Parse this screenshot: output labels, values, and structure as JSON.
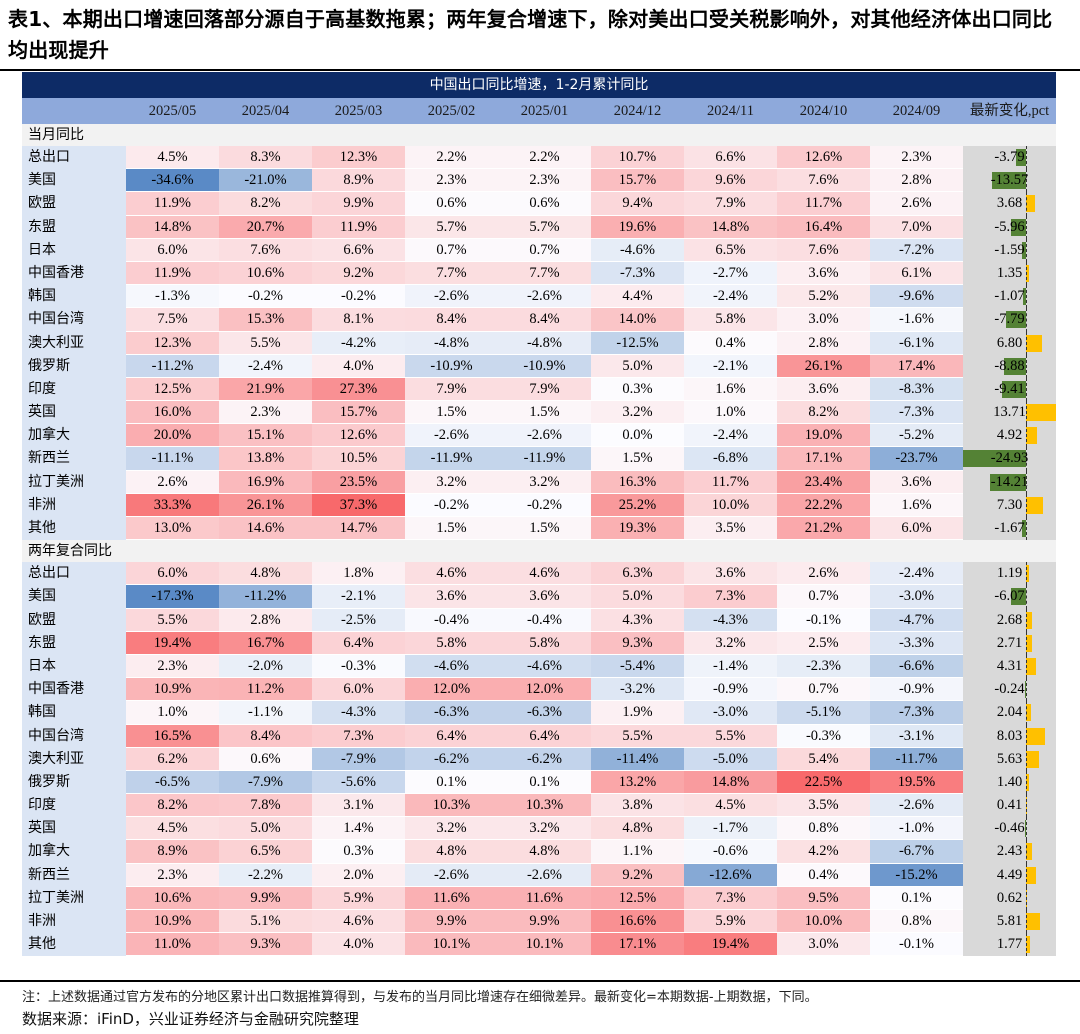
{
  "title": "表1、本期出口增速回落部分源自于高基数拖累；两年复合增速下，除对美出口受关税影响外，对其他经济体出口同比均出现提升",
  "table": {
    "banner": "中国出口同比增速，1-2月累计同比",
    "columns": [
      "2025/05",
      "2025/04",
      "2025/03",
      "2025/02",
      "2025/01",
      "2024/12",
      "2024/11",
      "2024/10",
      "2024/09",
      "最新变化,pct"
    ],
    "sections": [
      {
        "name": "当月同比",
        "rows": [
          {
            "label": "总出口",
            "values": [
              4.5,
              8.3,
              12.3,
              2.2,
              2.2,
              10.7,
              6.6,
              12.6,
              2.3
            ],
            "change": -3.79
          },
          {
            "label": "美国",
            "values": [
              -34.6,
              -21.0,
              8.9,
              2.3,
              2.3,
              15.7,
              9.6,
              7.6,
              2.8
            ],
            "change": -13.57
          },
          {
            "label": "欧盟",
            "values": [
              11.9,
              8.2,
              9.9,
              0.6,
              0.6,
              9.4,
              7.9,
              11.7,
              2.6
            ],
            "change": 3.68
          },
          {
            "label": "东盟",
            "values": [
              14.8,
              20.7,
              11.9,
              5.7,
              5.7,
              19.6,
              14.8,
              16.4,
              7.0
            ],
            "change": -5.96
          },
          {
            "label": "日本",
            "values": [
              6.0,
              7.6,
              6.6,
              0.7,
              0.7,
              -4.6,
              6.5,
              7.6,
              -7.2
            ],
            "change": -1.59
          },
          {
            "label": "中国香港",
            "values": [
              11.9,
              10.6,
              9.2,
              7.7,
              7.7,
              -7.3,
              -2.7,
              3.6,
              6.1
            ],
            "change": 1.35
          },
          {
            "label": "韩国",
            "values": [
              -1.3,
              -0.2,
              -0.2,
              -2.6,
              -2.6,
              4.4,
              -2.4,
              5.2,
              -9.6
            ],
            "change": -1.07
          },
          {
            "label": "中国台湾",
            "values": [
              7.5,
              15.3,
              8.1,
              8.4,
              8.4,
              14.0,
              5.8,
              3.0,
              -1.6
            ],
            "change": -7.79
          },
          {
            "label": "澳大利亚",
            "values": [
              12.3,
              5.5,
              -4.2,
              -4.8,
              -4.8,
              -12.5,
              0.4,
              2.8,
              -6.1
            ],
            "change": 6.8
          },
          {
            "label": "俄罗斯",
            "values": [
              -11.2,
              -2.4,
              4.0,
              -10.9,
              -10.9,
              5.0,
              -2.1,
              26.1,
              17.4
            ],
            "change": -8.88
          },
          {
            "label": "印度",
            "values": [
              12.5,
              21.9,
              27.3,
              7.9,
              7.9,
              0.3,
              1.6,
              3.6,
              -8.3
            ],
            "change": -9.41
          },
          {
            "label": "英国",
            "values": [
              16.0,
              2.3,
              15.7,
              1.5,
              1.5,
              3.2,
              1.0,
              8.2,
              -7.3
            ],
            "change": 13.71
          },
          {
            "label": "加拿大",
            "values": [
              20.0,
              15.1,
              12.6,
              -2.6,
              -2.6,
              0.0,
              -2.4,
              19.0,
              -5.2
            ],
            "change": 4.92
          },
          {
            "label": "新西兰",
            "values": [
              -11.1,
              13.8,
              10.5,
              -11.9,
              -11.9,
              1.5,
              -6.8,
              17.1,
              -23.7
            ],
            "change": -24.93
          },
          {
            "label": "拉丁美洲",
            "values": [
              2.6,
              16.9,
              23.5,
              3.2,
              3.2,
              16.3,
              11.7,
              23.4,
              3.6
            ],
            "change": -14.21
          },
          {
            "label": "非洲",
            "values": [
              33.3,
              26.1,
              37.3,
              -0.2,
              -0.2,
              25.2,
              10.0,
              22.2,
              1.6
            ],
            "change": 7.3
          },
          {
            "label": "其他",
            "values": [
              13.0,
              14.6,
              14.7,
              1.5,
              1.5,
              19.3,
              3.5,
              21.2,
              6.0
            ],
            "change": -1.67
          }
        ]
      },
      {
        "name": "两年复合同比",
        "rows": [
          {
            "label": "总出口",
            "values": [
              6.0,
              4.8,
              1.8,
              4.6,
              4.6,
              6.3,
              3.6,
              2.6,
              -2.4
            ],
            "change": 1.19
          },
          {
            "label": "美国",
            "values": [
              -17.3,
              -11.2,
              -2.1,
              3.6,
              3.6,
              5.0,
              7.3,
              0.7,
              -3.0
            ],
            "change": -6.07
          },
          {
            "label": "欧盟",
            "values": [
              5.5,
              2.8,
              -2.5,
              -0.4,
              -0.4,
              4.3,
              -4.3,
              -0.1,
              -4.7
            ],
            "change": 2.68
          },
          {
            "label": "东盟",
            "values": [
              19.4,
              16.7,
              6.4,
              5.8,
              5.8,
              9.3,
              3.2,
              2.5,
              -3.3
            ],
            "change": 2.71
          },
          {
            "label": "日本",
            "values": [
              2.3,
              -2.0,
              -0.3,
              -4.6,
              -4.6,
              -5.4,
              -1.4,
              -2.3,
              -6.6
            ],
            "change": 4.31
          },
          {
            "label": "中国香港",
            "values": [
              10.9,
              11.2,
              6.0,
              12.0,
              12.0,
              -3.2,
              -0.9,
              0.7,
              -0.9
            ],
            "change": -0.24
          },
          {
            "label": "韩国",
            "values": [
              1.0,
              -1.1,
              -4.3,
              -6.3,
              -6.3,
              1.9,
              -3.0,
              -5.1,
              -7.3
            ],
            "change": 2.04
          },
          {
            "label": "中国台湾",
            "values": [
              16.5,
              8.4,
              7.3,
              6.4,
              6.4,
              5.5,
              5.5,
              -0.3,
              -3.1
            ],
            "change": 8.03
          },
          {
            "label": "澳大利亚",
            "values": [
              6.2,
              0.6,
              -7.9,
              -6.2,
              -6.2,
              -11.4,
              -5.0,
              5.4,
              -11.7
            ],
            "change": 5.63
          },
          {
            "label": "俄罗斯",
            "values": [
              -6.5,
              -7.9,
              -5.6,
              0.1,
              0.1,
              13.2,
              14.8,
              22.5,
              19.5
            ],
            "change": 1.4
          },
          {
            "label": "印度",
            "values": [
              8.2,
              7.8,
              3.1,
              10.3,
              10.3,
              3.8,
              4.5,
              3.5,
              -2.6
            ],
            "change": 0.41
          },
          {
            "label": "英国",
            "values": [
              4.5,
              5.0,
              1.4,
              3.2,
              3.2,
              4.8,
              -1.7,
              0.8,
              -1.0
            ],
            "change": -0.46
          },
          {
            "label": "加拿大",
            "values": [
              8.9,
              6.5,
              0.3,
              4.8,
              4.8,
              1.1,
              -0.6,
              4.2,
              -6.7
            ],
            "change": 2.43
          },
          {
            "label": "新西兰",
            "values": [
              2.3,
              -2.2,
              2.0,
              -2.6,
              -2.6,
              9.2,
              -12.6,
              0.4,
              -15.2
            ],
            "change": 4.49
          },
          {
            "label": "拉丁美洲",
            "values": [
              10.6,
              9.9,
              5.9,
              11.6,
              11.6,
              12.5,
              7.3,
              9.5,
              0.1
            ],
            "change": 0.62
          },
          {
            "label": "非洲",
            "values": [
              10.9,
              5.1,
              4.6,
              9.9,
              9.9,
              16.6,
              5.9,
              10.0,
              0.8
            ],
            "change": 5.81
          },
          {
            "label": "其他",
            "values": [
              11.0,
              9.3,
              4.0,
              10.1,
              10.1,
              17.1,
              19.4,
              3.0,
              -0.1
            ],
            "change": 1.77
          }
        ]
      }
    ]
  },
  "colors": {
    "banner": "#0d2b66",
    "header": "#8ea9db",
    "positive": "#f8696b",
    "negative": "#5a8ac6",
    "bar_up": "#ffc000",
    "bar_down": "#548235"
  },
  "note": "注：上述数据通过官方发布的分地区累计出口数据推算得到，与发布的当月同比增速存在细微差异。最新变化=本期数据-上期数据，下同。",
  "source": "数据来源：iFinD，兴业证券经济与金融研究院整理"
}
